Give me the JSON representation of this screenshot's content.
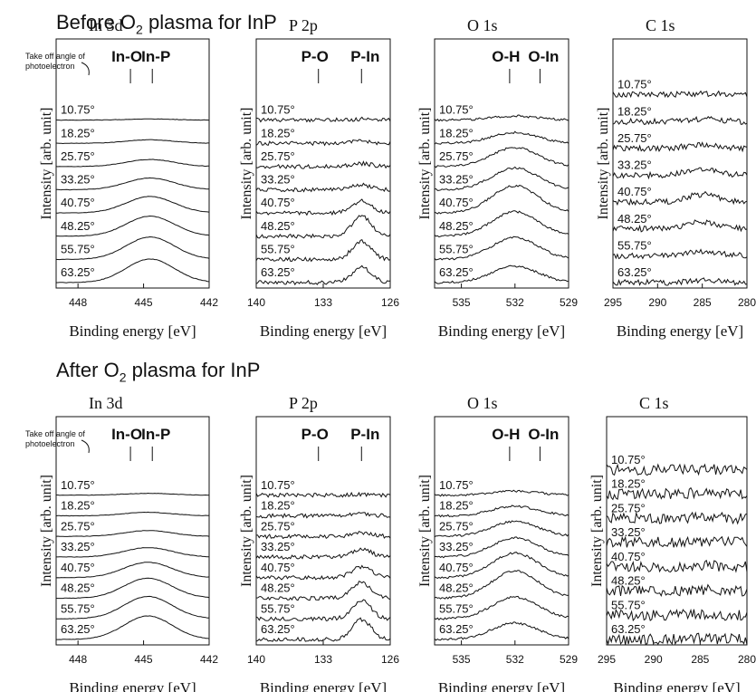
{
  "sections": [
    {
      "title_pre": "Before O",
      "title_sub": "2",
      "title_post": " plasma for InP",
      "panels": [
        {
          "label": "In 3d",
          "xticks": [
            "448",
            "445",
            "442"
          ],
          "peaks": [
            {
              "label": "In-O",
              "energy": 445.6
            },
            {
              "label": "In-P",
              "energy": 444.6
            }
          ],
          "annotation": "Take off angle of photoelectron",
          "angles": [
            "10.75°",
            "18.25°",
            "25.75°",
            "33.25°",
            "40.75°",
            "48.25°",
            "55.75°",
            "63.25°"
          ]
        },
        {
          "label": "P 2p",
          "xticks": [
            "140",
            "133",
            "126"
          ],
          "peaks": [
            {
              "label": "P-O",
              "energy": 133.5
            },
            {
              "label": "P-In",
              "energy": 129.0
            }
          ],
          "angles": [
            "10.75°",
            "18.25°",
            "25.75°",
            "33.25°",
            "40.75°",
            "48.25°",
            "55.75°",
            "63.25°"
          ]
        },
        {
          "label": "O 1s",
          "xticks": [
            "535",
            "532",
            "529"
          ],
          "peaks": [
            {
              "label": "O-H",
              "energy": 532.3
            },
            {
              "label": "O-In",
              "energy": 530.6
            }
          ],
          "angles": [
            "10.75°",
            "18.25°",
            "25.75°",
            "33.25°",
            "40.75°",
            "48.25°",
            "55.75°",
            "63.25°"
          ]
        },
        {
          "label": "C 1s",
          "xticks": [
            "295",
            "290",
            "285",
            "280"
          ],
          "peaks": [],
          "angles": [
            "10.75°",
            "18.25°",
            "25.75°",
            "33.25°",
            "40.75°",
            "48.25°",
            "55.75°",
            "63.25°"
          ]
        }
      ]
    },
    {
      "title_pre": "After O",
      "title_sub": "2",
      "title_post": " plasma for InP",
      "panels": [
        {
          "label": "In 3d",
          "xticks": [
            "448",
            "445",
            "442"
          ],
          "peaks": [
            {
              "label": "In-O",
              "energy": 445.6
            },
            {
              "label": "In-P",
              "energy": 444.6
            }
          ],
          "annotation": "Take off angle of photoelectron",
          "angles": [
            "10.75°",
            "18.25°",
            "25.75°",
            "33.25°",
            "40.75°",
            "48.25°",
            "55.75°",
            "63.25°"
          ]
        },
        {
          "label": "P 2p",
          "xticks": [
            "140",
            "133",
            "126"
          ],
          "peaks": [
            {
              "label": "P-O",
              "energy": 133.5
            },
            {
              "label": "P-In",
              "energy": 129.0
            }
          ],
          "angles": [
            "10.75°",
            "18.25°",
            "25.75°",
            "33.25°",
            "40.75°",
            "48.25°",
            "55.75°",
            "63.25°"
          ]
        },
        {
          "label": "O 1s",
          "xticks": [
            "535",
            "532",
            "529"
          ],
          "peaks": [
            {
              "label": "O-H",
              "energy": 532.3
            },
            {
              "label": "O-In",
              "energy": 530.6
            }
          ],
          "angles": [
            "10.75°",
            "18.25°",
            "25.75°",
            "33.25°",
            "40.75°",
            "48.25°",
            "55.75°",
            "63.25°"
          ]
        },
        {
          "label": "C 1s",
          "xticks": [
            "295",
            "290",
            "285",
            "280"
          ],
          "peaks": [],
          "angles": [
            "10.75°",
            "18.25°",
            "25.75°",
            "33.25°",
            "40.75°",
            "48.25°",
            "55.75°",
            "63.25°"
          ]
        }
      ]
    }
  ],
  "chart_data": [
    {
      "type": "line",
      "title": "Before O2 plasma for InP — In 3d",
      "xlabel": "Binding energy [eV]",
      "ylabel": "Intensity [arb. unit]",
      "xlim": [
        449,
        442
      ],
      "series": [
        {
          "name": "10.75°",
          "peak_energy": 444.7,
          "peak_height": 0.05
        },
        {
          "name": "18.25°",
          "peak_energy": 444.7,
          "peak_height": 0.15
        },
        {
          "name": "25.75°",
          "peak_energy": 444.7,
          "peak_height": 0.3
        },
        {
          "name": "33.25°",
          "peak_energy": 444.7,
          "peak_height": 0.5
        },
        {
          "name": "40.75°",
          "peak_energy": 444.7,
          "peak_height": 0.7
        },
        {
          "name": "48.25°",
          "peak_energy": 444.7,
          "peak_height": 0.85
        },
        {
          "name": "55.75°",
          "peak_energy": 444.7,
          "peak_height": 0.95
        },
        {
          "name": "63.25°",
          "peak_energy": 444.7,
          "peak_height": 1.0
        }
      ]
    },
    {
      "type": "line",
      "title": "Before O2 plasma for InP — P 2p",
      "xlabel": "Binding energy [eV]",
      "ylabel": "Intensity [arb. unit]",
      "xlim": [
        140,
        126
      ],
      "series": [
        {
          "name": "10.75°",
          "peak_energy": 129.0,
          "peak_height": 0.05
        },
        {
          "name": "18.25°",
          "peak_energy": 129.0,
          "peak_height": 0.1
        },
        {
          "name": "25.75°",
          "peak_energy": 129.0,
          "peak_height": 0.15
        },
        {
          "name": "33.25°",
          "peak_energy": 129.0,
          "peak_height": 0.25
        },
        {
          "name": "40.75°",
          "peak_energy": 129.0,
          "peak_height": 0.6
        },
        {
          "name": "48.25°",
          "peak_energy": 129.0,
          "peak_height": 1.0
        },
        {
          "name": "55.75°",
          "peak_energy": 129.0,
          "peak_height": 0.9
        },
        {
          "name": "63.25°",
          "peak_energy": 129.0,
          "peak_height": 0.75
        }
      ]
    },
    {
      "type": "line",
      "title": "Before O2 plasma for InP — O 1s",
      "xlabel": "Binding energy [eV]",
      "ylabel": "Intensity [arb. unit]",
      "xlim": [
        536.5,
        529
      ],
      "series": [
        {
          "name": "10.75°",
          "peak_energy": 532.0,
          "peak_height": 0.15
        },
        {
          "name": "18.25°",
          "peak_energy": 532.0,
          "peak_height": 0.4
        },
        {
          "name": "25.75°",
          "peak_energy": 532.0,
          "peak_height": 0.7
        },
        {
          "name": "33.25°",
          "peak_energy": 532.0,
          "peak_height": 0.8
        },
        {
          "name": "40.75°",
          "peak_energy": 532.0,
          "peak_height": 1.0
        },
        {
          "name": "48.25°",
          "peak_energy": 532.0,
          "peak_height": 0.9
        },
        {
          "name": "55.75°",
          "peak_energy": 532.0,
          "peak_height": 0.8
        },
        {
          "name": "63.25°",
          "peak_energy": 532.0,
          "peak_height": 0.6
        }
      ]
    },
    {
      "type": "line",
      "title": "Before O2 plasma for InP — C 1s",
      "xlabel": "Binding energy [eV]",
      "ylabel": "Intensity [arb. unit]",
      "xlim": [
        295,
        280
      ],
      "series": [
        {
          "name": "10.75°",
          "peak_energy": 285.0,
          "peak_height": 0.1
        },
        {
          "name": "18.25°",
          "peak_energy": 285.0,
          "peak_height": 0.2
        },
        {
          "name": "25.75°",
          "peak_energy": 285.0,
          "peak_height": 0.3
        },
        {
          "name": "33.25°",
          "peak_energy": 285.0,
          "peak_height": 0.5
        },
        {
          "name": "40.75°",
          "peak_energy": 285.0,
          "peak_height": 0.6
        },
        {
          "name": "48.25°",
          "peak_energy": 285.0,
          "peak_height": 0.55
        },
        {
          "name": "55.75°",
          "peak_energy": 285.0,
          "peak_height": 0.3
        },
        {
          "name": "63.25°",
          "peak_energy": 285.0,
          "peak_height": 0.15
        }
      ]
    },
    {
      "type": "line",
      "title": "After O2 plasma for InP — In 3d",
      "xlabel": "Binding energy [eV]",
      "ylabel": "Intensity [arb. unit]",
      "xlim": [
        449,
        442
      ],
      "series": [
        {
          "name": "10.75°",
          "peak_energy": 444.8,
          "peak_height": 0.08
        },
        {
          "name": "18.25°",
          "peak_energy": 444.8,
          "peak_height": 0.15
        },
        {
          "name": "25.75°",
          "peak_energy": 444.8,
          "peak_height": 0.25
        },
        {
          "name": "33.25°",
          "peak_energy": 444.8,
          "peak_height": 0.4
        },
        {
          "name": "40.75°",
          "peak_energy": 444.8,
          "peak_height": 0.65
        },
        {
          "name": "48.25°",
          "peak_energy": 444.8,
          "peak_height": 0.85
        },
        {
          "name": "55.75°",
          "peak_energy": 444.8,
          "peak_height": 0.95
        },
        {
          "name": "63.25°",
          "peak_energy": 444.8,
          "peak_height": 1.0
        }
      ]
    },
    {
      "type": "line",
      "title": "After O2 plasma for InP — P 2p",
      "xlabel": "Binding energy [eV]",
      "ylabel": "Intensity [arb. unit]",
      "xlim": [
        140,
        126
      ],
      "series": [
        {
          "name": "10.75°",
          "peak_energy": 129.0,
          "peak_height": 0.05
        },
        {
          "name": "18.25°",
          "peak_energy": 129.0,
          "peak_height": 0.1
        },
        {
          "name": "25.75°",
          "peak_energy": 129.0,
          "peak_height": 0.2
        },
        {
          "name": "33.25°",
          "peak_energy": 129.0,
          "peak_height": 0.4
        },
        {
          "name": "40.75°",
          "peak_energy": 129.0,
          "peak_height": 0.55
        },
        {
          "name": "48.25°",
          "peak_energy": 129.0,
          "peak_height": 0.8
        },
        {
          "name": "55.75°",
          "peak_energy": 129.0,
          "peak_height": 0.9
        },
        {
          "name": "63.25°",
          "peak_energy": 129.0,
          "peak_height": 1.0
        }
      ]
    },
    {
      "type": "line",
      "title": "After O2 plasma for InP — O 1s",
      "xlabel": "Binding energy [eV]",
      "ylabel": "Intensity [arb. unit]",
      "xlim": [
        536.5,
        529
      ],
      "series": [
        {
          "name": "10.75°",
          "peak_energy": 532.0,
          "peak_height": 0.15
        },
        {
          "name": "18.25°",
          "peak_energy": 532.0,
          "peak_height": 0.35
        },
        {
          "name": "25.75°",
          "peak_energy": 532.0,
          "peak_height": 0.55
        },
        {
          "name": "33.25°",
          "peak_energy": 532.0,
          "peak_height": 0.7
        },
        {
          "name": "40.75°",
          "peak_energy": 532.0,
          "peak_height": 0.9
        },
        {
          "name": "48.25°",
          "peak_energy": 532.0,
          "peak_height": 1.0
        },
        {
          "name": "55.75°",
          "peak_energy": 532.0,
          "peak_height": 0.8
        },
        {
          "name": "63.25°",
          "peak_energy": 532.0,
          "peak_height": 0.6
        }
      ]
    },
    {
      "type": "line",
      "title": "After O2 plasma for InP — C 1s",
      "xlabel": "Binding energy [eV]",
      "ylabel": "Intensity [arb. unit]",
      "xlim": [
        295,
        280
      ],
      "series": [
        {
          "name": "10.75°",
          "peak_energy": 285.0,
          "peak_height": 0.05
        },
        {
          "name": "18.25°",
          "peak_energy": 285.0,
          "peak_height": 0.08
        },
        {
          "name": "25.75°",
          "peak_energy": 285.0,
          "peak_height": 0.08
        },
        {
          "name": "33.25°",
          "peak_energy": 285.0,
          "peak_height": 0.1
        },
        {
          "name": "40.75°",
          "peak_energy": 285.0,
          "peak_height": 0.1
        },
        {
          "name": "48.25°",
          "peak_energy": 285.0,
          "peak_height": 0.1
        },
        {
          "name": "55.75°",
          "peak_energy": 285.0,
          "peak_height": 0.08
        },
        {
          "name": "63.25°",
          "peak_energy": 285.0,
          "peak_height": 0.08
        }
      ]
    }
  ],
  "common": {
    "xlabel": "Binding energy [eV]",
    "ylabel": "Intensity [arb. unit]"
  }
}
